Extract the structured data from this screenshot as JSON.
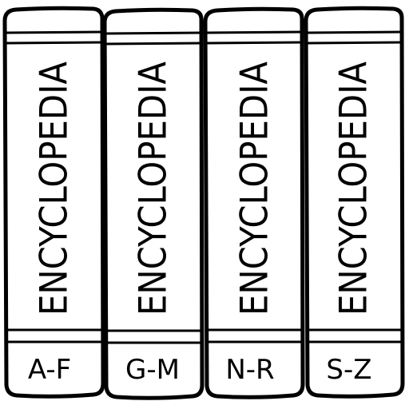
{
  "books": [
    {
      "title": "ENCYCLOPEDIA",
      "range": "A-F"
    },
    {
      "title": "ENCYCLOPEDIA",
      "range": "G-M"
    },
    {
      "title": "ENCYCLOPEDIA",
      "range": "N-R"
    },
    {
      "title": "ENCYCLOPEDIA",
      "range": "S-Z"
    }
  ],
  "colors": {
    "ink": "#000000",
    "paper": "#ffffff"
  }
}
